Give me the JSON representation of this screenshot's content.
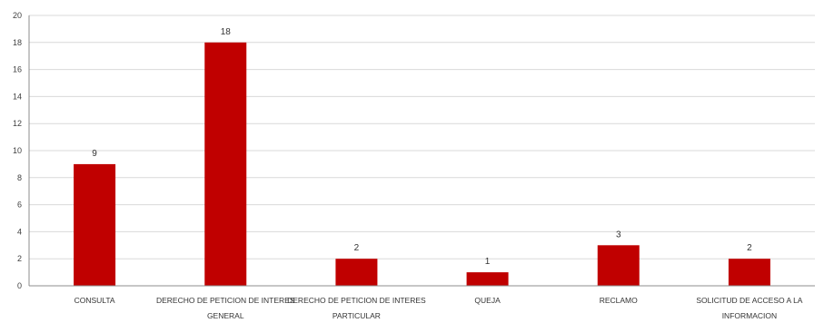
{
  "chart_data": {
    "type": "bar",
    "categories": [
      [
        "CONSULTA"
      ],
      [
        "DERECHO DE PETICION DE INTERES",
        "GENERAL"
      ],
      [
        "DERECHO DE PETICION DE INTERES",
        "PARTICULAR"
      ],
      [
        "QUEJA"
      ],
      [
        "RECLAMO"
      ],
      [
        "SOLICITUD DE ACCESO A LA",
        "INFORMACION"
      ]
    ],
    "values": [
      9,
      18,
      2,
      1,
      3,
      2
    ],
    "data_labels": [
      "9",
      "18",
      "2",
      "1",
      "3",
      "2"
    ],
    "title": "",
    "xlabel": "",
    "ylabel": "",
    "ylim": [
      0,
      20
    ],
    "yticks": [
      "0",
      "2",
      "4",
      "6",
      "8",
      "10",
      "12",
      "14",
      "16",
      "18",
      "20"
    ],
    "grid": true,
    "legend": "none",
    "colors": {
      "bar": "#c00000",
      "grid": "#d9d9d9",
      "axis": "#8c8c8c"
    }
  }
}
